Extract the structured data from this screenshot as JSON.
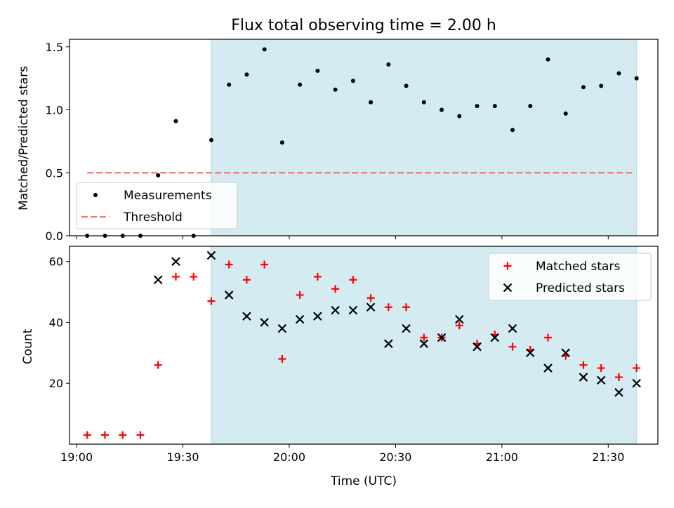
{
  "figure": {
    "title": "Flux total observing time = 2.00 h",
    "xlabel": "Time (UTC)"
  },
  "colors": {
    "highlight": "#add8e6",
    "measurement": "#000000",
    "threshold": "#ff6f6f",
    "matched": "#ff0000",
    "predicted": "#000000"
  },
  "chart_data": [
    {
      "type": "scatter",
      "ylabel": "Matched/Predicted stars",
      "xlim": [
        "18:58",
        "21:44"
      ],
      "ylim": [
        0,
        1.56
      ],
      "yticks": [
        0.0,
        0.5,
        1.0,
        1.5
      ],
      "ytick_labels": [
        "0.0",
        "0.5",
        "1.0",
        "1.5"
      ],
      "shaded_span": [
        "19:38",
        "21:38"
      ],
      "legend": {
        "placement": "lower-left",
        "entries": [
          "Measurements",
          "Threshold"
        ]
      },
      "threshold": {
        "name": "Threshold",
        "y": 0.5,
        "x_range": [
          "19:03",
          "21:37"
        ],
        "style": "dashed"
      },
      "series": [
        {
          "name": "Measurements",
          "marker": "dot",
          "points": [
            [
              "19:03",
              0.0
            ],
            [
              "19:08",
              0.0
            ],
            [
              "19:13",
              0.0
            ],
            [
              "19:18",
              0.0
            ],
            [
              "19:23",
              0.48
            ],
            [
              "19:28",
              0.91
            ],
            [
              "19:33",
              0.0
            ],
            [
              "19:38",
              0.76
            ],
            [
              "19:43",
              1.2
            ],
            [
              "19:48",
              1.28
            ],
            [
              "19:53",
              1.48
            ],
            [
              "19:58",
              0.74
            ],
            [
              "20:03",
              1.2
            ],
            [
              "20:08",
              1.31
            ],
            [
              "20:13",
              1.16
            ],
            [
              "20:18",
              1.23
            ],
            [
              "20:23",
              1.06
            ],
            [
              "20:28",
              1.36
            ],
            [
              "20:33",
              1.19
            ],
            [
              "20:38",
              1.06
            ],
            [
              "20:43",
              1.0
            ],
            [
              "20:48",
              0.95
            ],
            [
              "20:53",
              1.03
            ],
            [
              "20:58",
              1.03
            ],
            [
              "21:03",
              0.84
            ],
            [
              "21:08",
              1.03
            ],
            [
              "21:13",
              1.4
            ],
            [
              "21:18",
              0.97
            ],
            [
              "21:23",
              1.18
            ],
            [
              "21:28",
              1.19
            ],
            [
              "21:33",
              1.29
            ],
            [
              "21:38",
              1.25
            ]
          ]
        }
      ]
    },
    {
      "type": "scatter",
      "ylabel": "Count",
      "xlim": [
        "18:58",
        "21:44"
      ],
      "ylim": [
        0,
        65
      ],
      "yticks": [
        20,
        40,
        60
      ],
      "xticks": [
        "19:00",
        "19:30",
        "20:00",
        "20:30",
        "21:00",
        "21:30"
      ],
      "shaded_span": [
        "19:38",
        "21:38"
      ],
      "legend": {
        "placement": "upper-right",
        "entries": [
          "Matched stars",
          "Predicted stars"
        ]
      },
      "series": [
        {
          "name": "Matched stars",
          "marker": "plus",
          "points": [
            [
              "19:03",
              3
            ],
            [
              "19:08",
              3
            ],
            [
              "19:13",
              3
            ],
            [
              "19:18",
              3
            ],
            [
              "19:23",
              26
            ],
            [
              "19:28",
              55
            ],
            [
              "19:33",
              55
            ],
            [
              "19:38",
              47
            ],
            [
              "19:43",
              59
            ],
            [
              "19:48",
              54
            ],
            [
              "19:53",
              59
            ],
            [
              "19:58",
              28
            ],
            [
              "20:03",
              49
            ],
            [
              "20:08",
              55
            ],
            [
              "20:13",
              51
            ],
            [
              "20:18",
              54
            ],
            [
              "20:23",
              48
            ],
            [
              "20:28",
              45
            ],
            [
              "20:33",
              45
            ],
            [
              "20:38",
              35
            ],
            [
              "20:43",
              35
            ],
            [
              "20:48",
              39
            ],
            [
              "20:53",
              33
            ],
            [
              "20:58",
              36
            ],
            [
              "21:03",
              32
            ],
            [
              "21:08",
              31
            ],
            [
              "21:13",
              35
            ],
            [
              "21:18",
              29
            ],
            [
              "21:23",
              26
            ],
            [
              "21:28",
              25
            ],
            [
              "21:33",
              22
            ],
            [
              "21:38",
              25
            ]
          ]
        },
        {
          "name": "Predicted stars",
          "marker": "x",
          "points": [
            [
              "19:23",
              54
            ],
            [
              "19:28",
              60
            ],
            [
              "19:38",
              62
            ],
            [
              "19:43",
              49
            ],
            [
              "19:48",
              42
            ],
            [
              "19:53",
              40
            ],
            [
              "19:58",
              38
            ],
            [
              "20:03",
              41
            ],
            [
              "20:08",
              42
            ],
            [
              "20:13",
              44
            ],
            [
              "20:18",
              44
            ],
            [
              "20:23",
              45
            ],
            [
              "20:28",
              33
            ],
            [
              "20:33",
              38
            ],
            [
              "20:38",
              33
            ],
            [
              "20:43",
              35
            ],
            [
              "20:48",
              41
            ],
            [
              "20:53",
              32
            ],
            [
              "20:58",
              35
            ],
            [
              "21:03",
              38
            ],
            [
              "21:08",
              30
            ],
            [
              "21:13",
              25
            ],
            [
              "21:18",
              30
            ],
            [
              "21:23",
              22
            ],
            [
              "21:28",
              21
            ],
            [
              "21:33",
              17
            ],
            [
              "21:38",
              20
            ]
          ]
        }
      ]
    }
  ]
}
